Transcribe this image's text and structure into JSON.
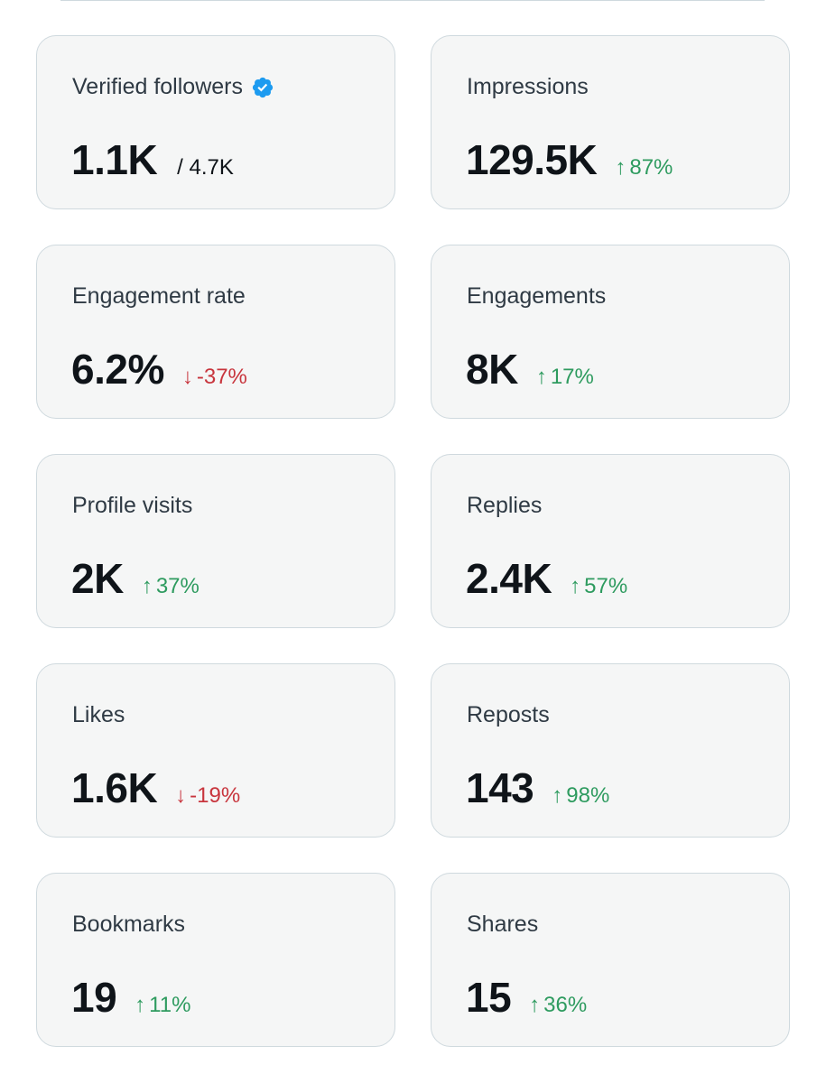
{
  "metrics": [
    {
      "label": "Verified followers",
      "value": "1.1K",
      "total": "/ 4.7K",
      "verified_icon": "verified-badge-icon"
    },
    {
      "label": "Impressions",
      "value": "129.5K",
      "delta": "87%",
      "direction": "up",
      "arrow": "↑"
    },
    {
      "label": "Engagement rate",
      "value": "6.2%",
      "delta": "-37%",
      "direction": "down",
      "arrow": "↓"
    },
    {
      "label": "Engagements",
      "value": "8K",
      "delta": "17%",
      "direction": "up",
      "arrow": "↑"
    },
    {
      "label": "Profile visits",
      "value": "2K",
      "delta": "37%",
      "direction": "up",
      "arrow": "↑"
    },
    {
      "label": "Replies",
      "value": "2.4K",
      "delta": "57%",
      "direction": "up",
      "arrow": "↑"
    },
    {
      "label": "Likes",
      "value": "1.6K",
      "delta": "-19%",
      "direction": "down",
      "arrow": "↓"
    },
    {
      "label": "Reposts",
      "value": "143",
      "delta": "98%",
      "direction": "up",
      "arrow": "↑"
    },
    {
      "label": "Bookmarks",
      "value": "19",
      "delta": "11%",
      "direction": "up",
      "arrow": "↑"
    },
    {
      "label": "Shares",
      "value": "15",
      "delta": "36%",
      "direction": "up",
      "arrow": "↑"
    }
  ],
  "colors": {
    "up": "#2e9b5f",
    "down": "#c8353d",
    "verified": "#1d9bf0"
  }
}
